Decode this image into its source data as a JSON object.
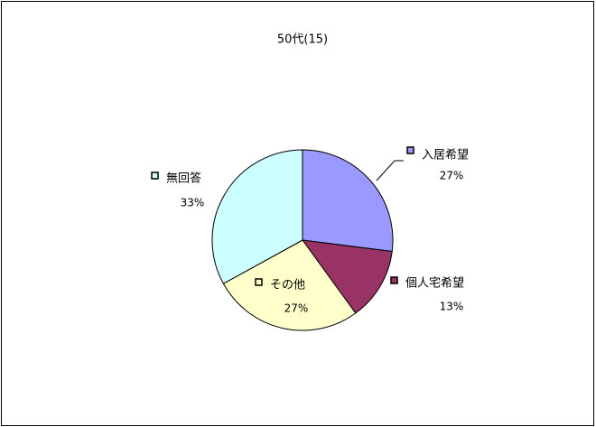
{
  "chart_data": {
    "type": "pie",
    "title": "50代(15)",
    "categories": [
      "入居希望",
      "個人宅希望",
      "その他",
      "無回答"
    ],
    "values": [
      27,
      13,
      27,
      33
    ],
    "value_labels": [
      "27%",
      "13%",
      "27%",
      "33%"
    ],
    "colors": [
      "#9999ff",
      "#993366",
      "#ffffcc",
      "#ccffff"
    ]
  }
}
